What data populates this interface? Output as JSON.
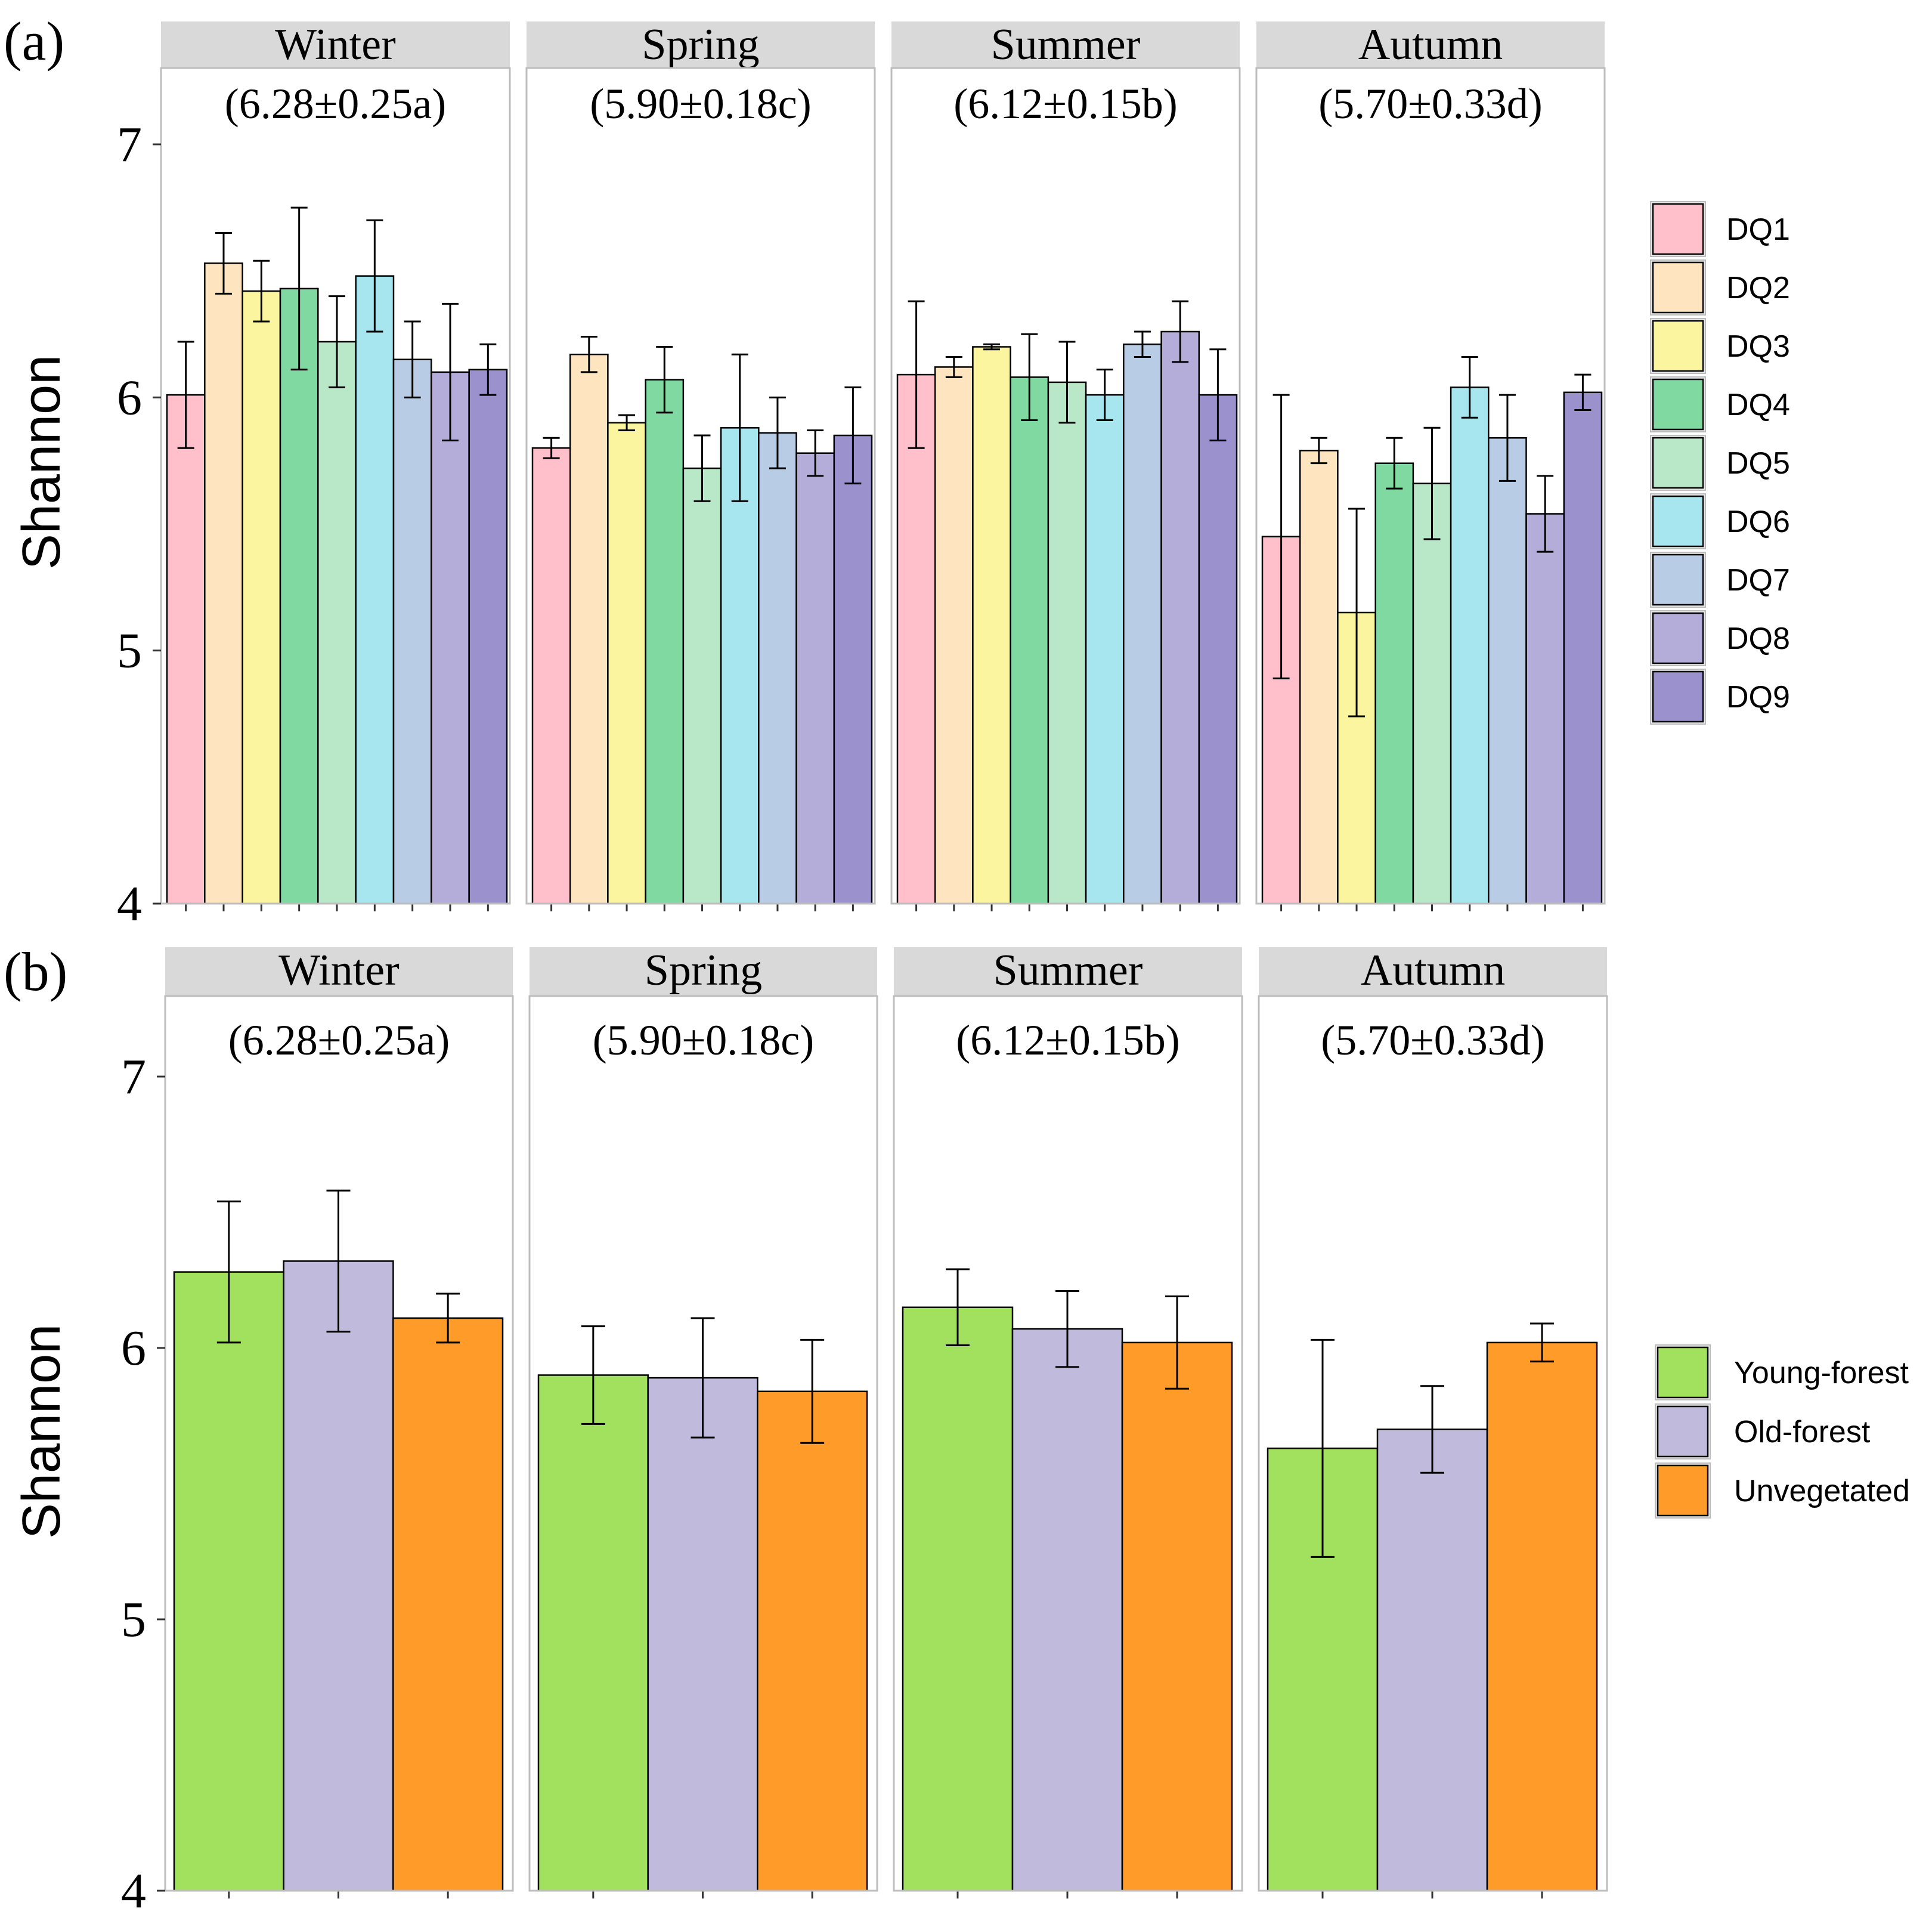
{
  "chart_data": [
    {
      "type": "bar",
      "panel_label": "(a)",
      "ylabel": "Shannon",
      "ylim": [
        4,
        7.3
      ],
      "yticks": [
        "4",
        "5",
        "6",
        "7"
      ],
      "grid": false,
      "legend_position": "right",
      "facets": [
        "Winter",
        "Spring",
        "Summer",
        "Autumn"
      ],
      "annotations": [
        "(6.28±0.25a)",
        "(5.90±0.18c)",
        "(6.12±0.15b)",
        "(5.70±0.33d)"
      ],
      "series": [
        {
          "name": "DQ1",
          "color": "#FFC0CB",
          "values": [
            6.01,
            5.8,
            6.09,
            5.45
          ],
          "errors": [
            0.21,
            0.04,
            0.29,
            0.56
          ]
        },
        {
          "name": "DQ2",
          "color": "#FFE4C0",
          "values": [
            6.53,
            6.17,
            6.12,
            5.79
          ],
          "errors": [
            0.12,
            0.07,
            0.04,
            0.05
          ]
        },
        {
          "name": "DQ3",
          "color": "#FAF59E",
          "values": [
            6.42,
            5.9,
            6.2,
            5.15
          ],
          "errors": [
            0.12,
            0.03,
            0.01,
            0.41
          ]
        },
        {
          "name": "DQ4",
          "color": "#7FD9A0",
          "values": [
            6.43,
            6.07,
            6.08,
            5.74
          ],
          "errors": [
            0.32,
            0.13,
            0.17,
            0.1
          ]
        },
        {
          "name": "DQ5",
          "color": "#B8E8C8",
          "values": [
            6.22,
            5.72,
            6.06,
            5.66
          ],
          "errors": [
            0.18,
            0.13,
            0.16,
            0.22
          ]
        },
        {
          "name": "DQ6",
          "color": "#A8E6EF",
          "values": [
            6.48,
            5.88,
            6.01,
            6.04
          ],
          "errors": [
            0.22,
            0.29,
            0.1,
            0.12
          ]
        },
        {
          "name": "DQ7",
          "color": "#B8CDE5",
          "values": [
            6.15,
            5.86,
            6.21,
            5.84
          ],
          "errors": [
            0.15,
            0.14,
            0.05,
            0.17
          ]
        },
        {
          "name": "DQ8",
          "color": "#B4ADD9",
          "values": [
            6.1,
            5.78,
            6.26,
            5.54
          ],
          "errors": [
            0.27,
            0.09,
            0.12,
            0.15
          ]
        },
        {
          "name": "DQ9",
          "color": "#9B91CC",
          "values": [
            6.11,
            5.85,
            6.01,
            6.02
          ],
          "errors": [
            0.1,
            0.19,
            0.18,
            0.07
          ]
        }
      ]
    },
    {
      "type": "bar",
      "panel_label": "(b)",
      "ylabel": "Shannon",
      "ylim": [
        4,
        7.3
      ],
      "yticks": [
        "4",
        "5",
        "6",
        "7"
      ],
      "grid": false,
      "legend_position": "right",
      "facets": [
        "Winter",
        "Spring",
        "Summer",
        "Autumn"
      ],
      "annotations": [
        "(6.28±0.25a)",
        "(5.90±0.18c)",
        "(6.12±0.15b)",
        "(5.70±0.33d)"
      ],
      "series": [
        {
          "name": "Young-forest",
          "color": "#A2E15E",
          "values": [
            6.28,
            5.9,
            6.15,
            5.63
          ],
          "errors": [
            0.26,
            0.18,
            0.14,
            0.4
          ]
        },
        {
          "name": "Old-forest",
          "color": "#C0BADD",
          "values": [
            6.32,
            5.89,
            6.07,
            5.7
          ],
          "errors": [
            0.26,
            0.22,
            0.14,
            0.16
          ]
        },
        {
          "name": "Unvegetated",
          "color": "#FF9B28",
          "values": [
            6.11,
            5.84,
            6.02,
            6.02
          ],
          "errors": [
            0.09,
            0.19,
            0.17,
            0.07
          ]
        }
      ]
    }
  ]
}
